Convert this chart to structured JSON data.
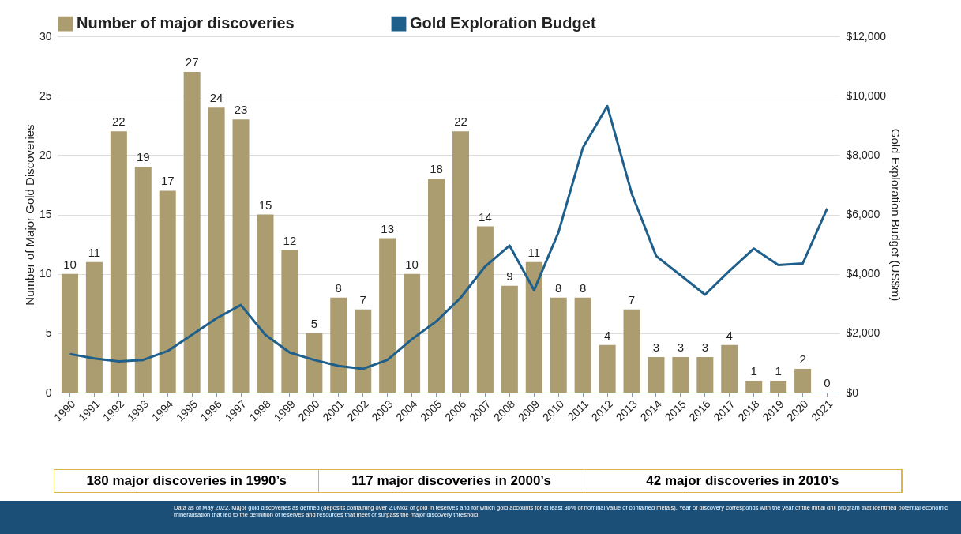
{
  "chart_data": {
    "type": "bar",
    "categories": [
      "1990",
      "1991",
      "1992",
      "1993",
      "1994",
      "1995",
      "1996",
      "1997",
      "1998",
      "1999",
      "2000",
      "2001",
      "2002",
      "2003",
      "2004",
      "2005",
      "2006",
      "2007",
      "2008",
      "2009",
      "2010",
      "2011",
      "2012",
      "2013",
      "2014",
      "2015",
      "2016",
      "2017",
      "2018",
      "2019",
      "2020",
      "2021"
    ],
    "series": [
      {
        "name": "Number of major discoveries",
        "color": "#ab9d6f",
        "values": [
          10,
          11,
          22,
          19,
          17,
          27,
          24,
          23,
          15,
          12,
          5,
          8,
          7,
          13,
          10,
          18,
          22,
          14,
          9,
          11,
          8,
          8,
          4,
          7,
          3,
          3,
          3,
          4,
          1,
          1,
          2,
          0
        ],
        "value_labels": [
          "10",
          "11",
          "22",
          "19",
          "17",
          "27",
          "24",
          "23",
          "15",
          "12",
          "5",
          "8",
          "7",
          "13",
          "10",
          "18",
          "22",
          "14",
          "9",
          "11",
          "8",
          "8",
          "4",
          "7",
          "3",
          "3",
          "3",
          "4",
          "1",
          "1",
          "2",
          "0"
        ]
      },
      {
        "name": "Gold Exploration Budget",
        "type": "line",
        "axis": "y2",
        "color": "#1f5f8b",
        "values": [
          1300,
          1150,
          1050,
          1100,
          1400,
          1950,
          2500,
          2950,
          1950,
          1350,
          1100,
          900,
          800,
          1100,
          1800,
          2400,
          3200,
          4250,
          4950,
          3450,
          5400,
          8250,
          9650,
          6700,
          4600,
          3950,
          3300,
          4100,
          4850,
          4300,
          4350,
          6200
        ]
      }
    ],
    "ylabel": "Number of Major Gold Discoveries",
    "y2label": "Gold Exploration Budget (US$m)",
    "ylim": [
      0,
      30
    ],
    "yticks": [
      0,
      5,
      10,
      15,
      20,
      25,
      30
    ],
    "y2lim": [
      0,
      12000
    ],
    "y2ticks": [
      {
        "value": 0,
        "label": "$0"
      },
      {
        "value": 2000,
        "label": "$2,000"
      },
      {
        "value": 4000,
        "label": "$4,000"
      },
      {
        "value": 6000,
        "label": "$6,000"
      },
      {
        "value": 8000,
        "label": "$8,000"
      },
      {
        "value": 10000,
        "label": "$10,000"
      },
      {
        "value": 12000,
        "label": "$12,000"
      }
    ],
    "grid": "y",
    "legend": "top",
    "annotations": [
      "180 major discoveries in 1990’s",
      "117 major discoveries in 2000’s",
      "42 major discoveries in 2010’s",
      "Data as of May 2022. Major gold discoveries as defined (deposits containing over 2.0Moz of gold in reserves and for which gold accounts for at least 30% of nominal value of contained metals). Year of discovery corresponds with the year of the initial drill program that identified potential economic mineralisation that led to the definition of reserves and resources that meet or surpass the major discovery threshold."
    ]
  }
}
